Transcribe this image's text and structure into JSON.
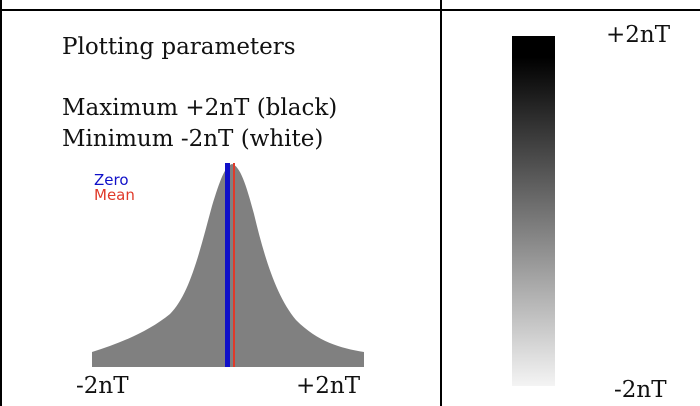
{
  "left_panel": {
    "heading": "Plotting parameters",
    "maximum_line": "Maximum +2nT (black)",
    "minimum_line": "Minimum -2nT (white)"
  },
  "histogram": {
    "legend_zero": "Zero",
    "legend_mean": "Mean",
    "x_min_label": "-2nT",
    "x_max_label": "+2nT",
    "colors": {
      "fill": "#808080",
      "zero_line": "#1010c8",
      "mean_line": "#e03a2a"
    }
  },
  "scale": {
    "top_label": "+2nT",
    "bottom_label": "-2nT",
    "top_color": "#000000",
    "bottom_color": "#f4f4f4"
  }
}
